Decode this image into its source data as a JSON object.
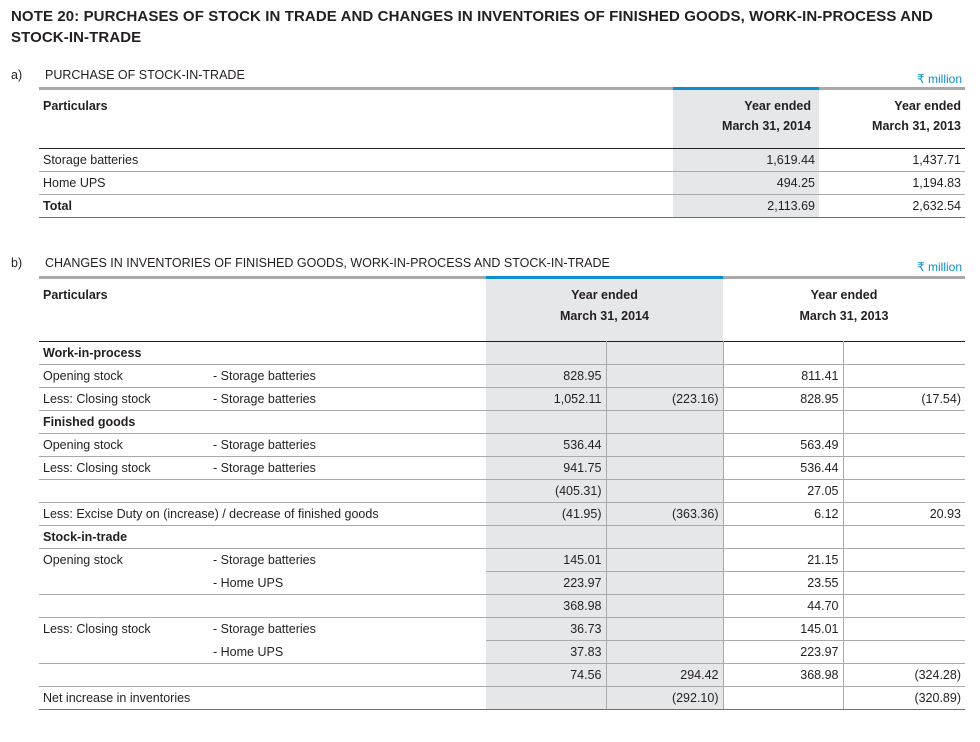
{
  "title": "NOTE 20: PURCHASES OF STOCK IN TRADE AND CHANGES IN INVENTORIES OF FINISHED GOODS, WORK-IN-PROCESS AND STOCK-IN-TRADE",
  "section_a": {
    "letter": "a)",
    "heading": "PURCHASE OF STOCK-IN-TRADE",
    "unit": "₹ million",
    "col_particulars": "Particulars",
    "col_2014_line1": "Year ended",
    "col_2014_line2": "March 31, 2014",
    "col_2013_line1": "Year ended",
    "col_2013_line2": "March 31, 2013",
    "rows": [
      {
        "label": "Storage batteries",
        "y2014": "1,619.44",
        "y2013": "1,437.71"
      },
      {
        "label": "Home UPS",
        "y2014": "494.25",
        "y2013": "1,194.83"
      },
      {
        "label": "Total",
        "y2014": "2,113.69",
        "y2013": "2,632.54"
      }
    ]
  },
  "section_b": {
    "letter": "b)",
    "heading": "CHANGES IN INVENTORIES OF FINISHED GOODS, WORK-IN-PROCESS AND STOCK-IN-TRADE",
    "unit": "₹ million",
    "col_particulars": "Particulars",
    "col_2014_line1": "Year ended",
    "col_2014_line2": "March 31, 2014",
    "col_2013_line1": "Year ended",
    "col_2013_line2": "March 31, 2013",
    "rows": [
      {
        "label": "Work-in-process",
        "sub": "",
        "a": "",
        "b": "",
        "c": "",
        "d": "",
        "bold": true
      },
      {
        "label": "Opening stock",
        "sub": "- Storage batteries",
        "a": "828.95",
        "b": "",
        "c": "811.41",
        "d": ""
      },
      {
        "label": "Less: Closing stock",
        "sub": "- Storage batteries",
        "a": "1,052.11",
        "b": "(223.16)",
        "c": "828.95",
        "d": "(17.54)"
      },
      {
        "label": "Finished goods",
        "sub": "",
        "a": "",
        "b": "",
        "c": "",
        "d": "",
        "bold": true
      },
      {
        "label": "Opening stock",
        "sub": "- Storage batteries",
        "a": "536.44",
        "b": "",
        "c": "563.49",
        "d": ""
      },
      {
        "label": "Less: Closing stock",
        "sub": "- Storage batteries",
        "a": "941.75",
        "b": "",
        "c": "536.44",
        "d": ""
      },
      {
        "label": "",
        "sub": "",
        "a": "(405.31)",
        "b": "",
        "c": "27.05",
        "d": ""
      },
      {
        "label": "Less: Excise Duty on (increase) / decrease of finished goods",
        "sub": "",
        "a": "(41.95)",
        "b": "(363.36)",
        "c": "6.12",
        "d": "20.93",
        "span": true
      },
      {
        "label": "Stock-in-trade",
        "sub": "",
        "a": "",
        "b": "",
        "c": "",
        "d": "",
        "bold": true
      },
      {
        "label": "Opening stock",
        "sub": "- Storage batteries",
        "a": "145.01",
        "b": "",
        "c": "21.15",
        "d": "",
        "nob": true
      },
      {
        "label": "",
        "sub": "- Home UPS",
        "a": "223.97",
        "b": "",
        "c": "23.55",
        "d": ""
      },
      {
        "label": "",
        "sub": "",
        "a": "368.98",
        "b": "",
        "c": "44.70",
        "d": ""
      },
      {
        "label": "Less: Closing stock",
        "sub": "- Storage batteries",
        "a": "36.73",
        "b": "",
        "c": "145.01",
        "d": "",
        "nob": true
      },
      {
        "label": "",
        "sub": "- Home UPS",
        "a": "37.83",
        "b": "",
        "c": "223.97",
        "d": ""
      },
      {
        "label": "",
        "sub": "",
        "a": "74.56",
        "b": "294.42",
        "c": "368.98",
        "d": "(324.28)"
      },
      {
        "label": "Net increase in inventories",
        "sub": "",
        "a": "",
        "b": "(292.10)",
        "c": "",
        "d": "(320.89)",
        "span": true
      }
    ]
  }
}
